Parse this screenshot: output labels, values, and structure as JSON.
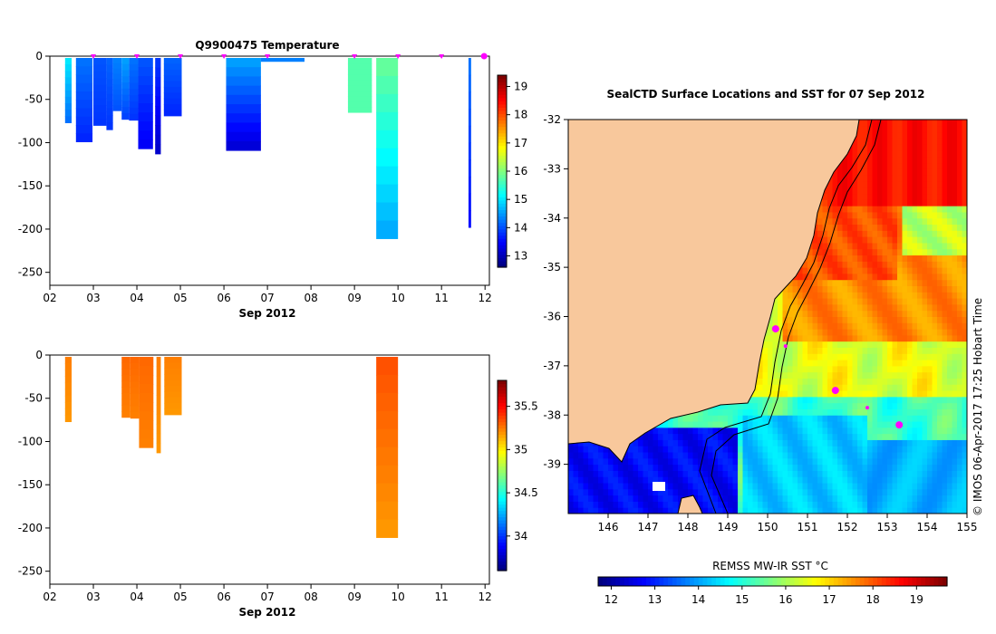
{
  "top_title": "Q9900475  Temperature",
  "map_title": "SealCTD Surface Locations and SST for 07 Sep 2012",
  "credit": "© IMOS 06-Apr-2017 17:25 Hobart Time",
  "colorbar_title": "REMSS MW-IR SST °C",
  "colors": {
    "land": "#f8c89c",
    "marker": "#ff00ff",
    "axis": "#000000"
  },
  "chart_data": [
    {
      "type": "heatmap",
      "title": "Q9900475  Temperature",
      "xlabel": "Sep 2012",
      "ylabel": "",
      "x_ticks": [
        "02",
        "03",
        "04",
        "05",
        "06",
        "07",
        "08",
        "09",
        "10",
        "11",
        "12"
      ],
      "xlim": [
        2,
        12.1
      ],
      "y_ticks": [
        0,
        -50,
        -100,
        -150,
        -200,
        -250
      ],
      "ylim": [
        -265,
        0
      ],
      "colorbar": {
        "ticks": [
          13,
          14,
          15,
          16,
          17,
          18,
          19
        ],
        "range": [
          12.6,
          19.4
        ]
      },
      "profile_markers_day": [
        3,
        4,
        5,
        6,
        7,
        9,
        10,
        11,
        12
      ],
      "profiles": [
        {
          "x0": 2.35,
          "x1": 2.5,
          "depth": -77,
          "top": 15.0,
          "bottom": 14.2
        },
        {
          "x0": 2.6,
          "x1": 2.98,
          "depth": -99,
          "top": 14.2,
          "bottom": 13.7
        },
        {
          "x0": 3.0,
          "x1": 3.3,
          "depth": -80,
          "top": 14.0,
          "bottom": 13.8
        },
        {
          "x0": 3.3,
          "x1": 3.45,
          "depth": -85,
          "top": 14.1,
          "bottom": 13.8
        },
        {
          "x0": 3.45,
          "x1": 3.65,
          "depth": -63,
          "top": 14.3,
          "bottom": 14.0
        },
        {
          "x0": 3.65,
          "x1": 3.82,
          "depth": -73,
          "top": 14.5,
          "bottom": 13.9
        },
        {
          "x0": 3.82,
          "x1": 4.03,
          "depth": -74,
          "top": 14.2,
          "bottom": 13.8
        },
        {
          "x0": 4.03,
          "x1": 4.37,
          "depth": -107,
          "top": 14.0,
          "bottom": 13.4
        },
        {
          "x0": 4.42,
          "x1": 4.55,
          "depth": -113,
          "top": 13.8,
          "bottom": 13.1
        },
        {
          "x0": 4.62,
          "x1": 5.03,
          "depth": -69,
          "top": 14.1,
          "bottom": 13.7
        },
        {
          "x0": 6.05,
          "x1": 6.85,
          "depth": -109,
          "top": 14.5,
          "bottom": 13.2
        },
        {
          "x0": 6.85,
          "x1": 7.85,
          "depth": -6,
          "top": 14.3,
          "bottom": 14.3
        },
        {
          "x0": 8.85,
          "x1": 9.4,
          "depth": -65,
          "top": 15.7,
          "bottom": 15.7
        },
        {
          "x0": 9.5,
          "x1": 10.0,
          "depth": -211,
          "top": 15.8,
          "bottom": 14.6
        },
        {
          "x0": 11.62,
          "x1": 11.68,
          "depth": -198,
          "top": 14.2,
          "bottom": 13.5
        }
      ]
    },
    {
      "type": "heatmap",
      "title": "",
      "xlabel": "Sep 2012",
      "ylabel": "",
      "x_ticks": [
        "02",
        "03",
        "04",
        "05",
        "06",
        "07",
        "08",
        "09",
        "10",
        "11",
        "12"
      ],
      "xlim": [
        2,
        12.1
      ],
      "y_ticks": [
        0,
        -50,
        -100,
        -150,
        -200,
        -250
      ],
      "ylim": [
        -265,
        0
      ],
      "colorbar": {
        "ticks": [
          34,
          34.5,
          35,
          35.5
        ],
        "range": [
          33.6,
          35.8
        ]
      },
      "profiles": [
        {
          "x0": 2.35,
          "x1": 2.5,
          "depth": -77,
          "top": 35.25,
          "bottom": 35.2
        },
        {
          "x0": 3.65,
          "x1": 3.85,
          "depth": -72,
          "top": 35.3,
          "bottom": 35.25
        },
        {
          "x0": 3.85,
          "x1": 4.05,
          "depth": -73,
          "top": 35.3,
          "bottom": 35.25
        },
        {
          "x0": 4.05,
          "x1": 4.38,
          "depth": -107,
          "top": 35.3,
          "bottom": 35.25
        },
        {
          "x0": 4.45,
          "x1": 4.55,
          "depth": -113,
          "top": 35.25,
          "bottom": 35.2
        },
        {
          "x0": 4.63,
          "x1": 5.03,
          "depth": -69,
          "top": 35.25,
          "bottom": 35.2
        },
        {
          "x0": 9.5,
          "x1": 10.0,
          "depth": -211,
          "top": 35.35,
          "bottom": 35.2
        }
      ]
    },
    {
      "type": "heatmap",
      "title": "SealCTD Surface Locations and SST for 07 Sep 2012",
      "xlabel": "",
      "ylabel": "",
      "x_ticks": [
        146,
        147,
        148,
        149,
        150,
        151,
        152,
        153,
        154,
        155
      ],
      "xlim": [
        145.0,
        155.0
      ],
      "y_ticks": [
        -32,
        -33,
        -34,
        -35,
        -36,
        -37,
        -38,
        -39
      ],
      "ylim": [
        -40.0,
        -32.0
      ],
      "colorbar": {
        "label": "REMSS MW-IR SST °C",
        "ticks": [
          12,
          13,
          14,
          15,
          16,
          17,
          18,
          19
        ],
        "range": [
          11.7,
          19.7
        ]
      },
      "seal_locations": [
        {
          "lon": 150.2,
          "lat": -36.25
        },
        {
          "lon": 151.7,
          "lat": -37.5
        },
        {
          "lon": 153.3,
          "lat": -38.2
        },
        {
          "lon": 152.5,
          "lat": -37.85
        },
        {
          "lon": 150.45,
          "lat": -36.6
        }
      ]
    }
  ]
}
